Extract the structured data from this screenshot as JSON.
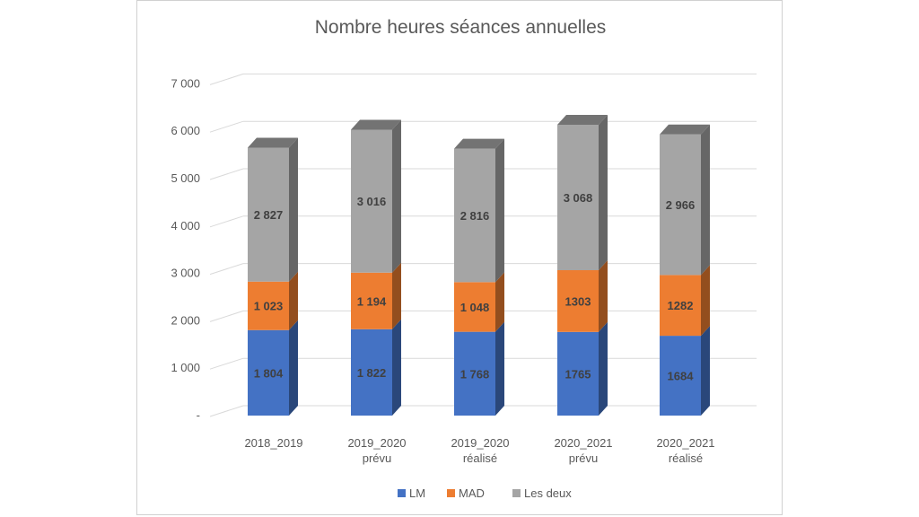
{
  "chart_data": {
    "type": "bar",
    "stacked": true,
    "style": "3d-column",
    "title": "Nombre heures séances annuelles",
    "categories": [
      [
        "2018_2019"
      ],
      [
        "2019_2020",
        "prévu"
      ],
      [
        "2019_2020",
        "réalisé"
      ],
      [
        "2020_2021",
        "prévu"
      ],
      [
        "2020_2021",
        "réalisé"
      ]
    ],
    "series": [
      {
        "name": "LM",
        "color": "#4472C4",
        "values": [
          1804,
          1822,
          1768,
          1765,
          1684
        ],
        "labels": [
          "1 804",
          "1 822",
          "1 768",
          "1765",
          "1684"
        ]
      },
      {
        "name": "MAD",
        "color": "#ED7D31",
        "values": [
          1023,
          1194,
          1048,
          1303,
          1282
        ],
        "labels": [
          "1 023",
          "1 194",
          "1 048",
          "1303",
          "1282"
        ]
      },
      {
        "name": "Les deux",
        "color": "#A5A5A5",
        "values": [
          2827,
          3016,
          2816,
          3068,
          2966
        ],
        "labels": [
          "2 827",
          "3 016",
          "2 816",
          "3 068",
          "2 966"
        ]
      }
    ],
    "ylim": [
      0,
      7000
    ],
    "yticks": [
      0,
      1000,
      2000,
      3000,
      4000,
      5000,
      6000,
      7000
    ],
    "ytick_labels": [
      "-",
      "1 000",
      "2 000",
      "3 000",
      "4 000",
      "5 000",
      "6 000",
      "7 000"
    ],
    "grid": true,
    "legend_position": "bottom"
  }
}
